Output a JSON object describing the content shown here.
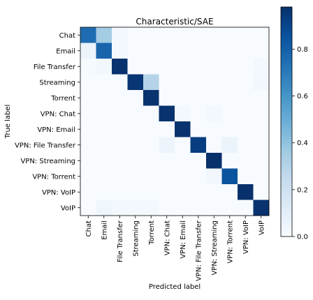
{
  "chart_data": {
    "type": "heatmap",
    "title": "Characteristic/SAE",
    "xlabel": "Predicted label",
    "ylabel": "True label",
    "labels": [
      "Chat",
      "Email",
      "File Transfer",
      "Streaming",
      "Torrent",
      "VPN: Chat",
      "VPN: Email",
      "VPN: File Transfer",
      "VPN: Streaming",
      "VPN: Torrent",
      "VPN: VoIP",
      "VoIP"
    ],
    "colormap": "Blues",
    "vmin": 0,
    "vmax": 0.98,
    "colorbar_ticks": [
      0.0,
      0.2,
      0.4,
      0.6,
      0.8
    ],
    "colorbar_tick_labels": [
      "0.0",
      "0.2",
      "0.4",
      "0.6",
      "0.8"
    ],
    "matrix": [
      [
        0.75,
        0.35,
        0.02,
        0.0,
        0.0,
        0.0,
        0.0,
        0.0,
        0.0,
        0.0,
        0.0,
        0.0
      ],
      [
        0.06,
        0.78,
        0.02,
        0.0,
        0.0,
        0.0,
        0.0,
        0.0,
        0.0,
        0.0,
        0.0,
        0.0
      ],
      [
        0.01,
        0.03,
        0.97,
        0.0,
        0.0,
        0.0,
        0.0,
        0.0,
        0.0,
        0.0,
        0.0,
        0.02
      ],
      [
        0.0,
        0.0,
        0.0,
        0.96,
        0.3,
        0.0,
        0.0,
        0.0,
        0.0,
        0.0,
        0.0,
        0.03
      ],
      [
        0.0,
        0.0,
        0.0,
        0.0,
        0.97,
        0.0,
        0.0,
        0.0,
        0.0,
        0.0,
        0.0,
        0.0
      ],
      [
        0.0,
        0.0,
        0.0,
        0.0,
        0.0,
        0.97,
        0.02,
        0.0,
        0.02,
        0.0,
        0.0,
        0.0
      ],
      [
        0.0,
        0.0,
        0.0,
        0.0,
        0.0,
        0.0,
        0.97,
        0.0,
        0.0,
        0.0,
        0.0,
        0.0
      ],
      [
        0.0,
        0.0,
        0.0,
        0.0,
        0.0,
        0.05,
        0.0,
        0.93,
        0.0,
        0.06,
        0.0,
        0.0
      ],
      [
        0.0,
        0.0,
        0.0,
        0.0,
        0.0,
        0.0,
        0.0,
        0.0,
        0.98,
        0.0,
        0.0,
        0.0
      ],
      [
        0.0,
        0.0,
        0.0,
        0.0,
        0.0,
        0.0,
        0.0,
        0.0,
        0.03,
        0.85,
        0.0,
        0.0
      ],
      [
        0.0,
        0.0,
        0.0,
        0.0,
        0.0,
        0.0,
        0.0,
        0.0,
        0.0,
        0.0,
        0.98,
        0.0
      ],
      [
        0.0,
        0.04,
        0.02,
        0.02,
        0.02,
        0.0,
        0.0,
        0.0,
        0.0,
        0.0,
        0.0,
        0.97
      ]
    ]
  }
}
